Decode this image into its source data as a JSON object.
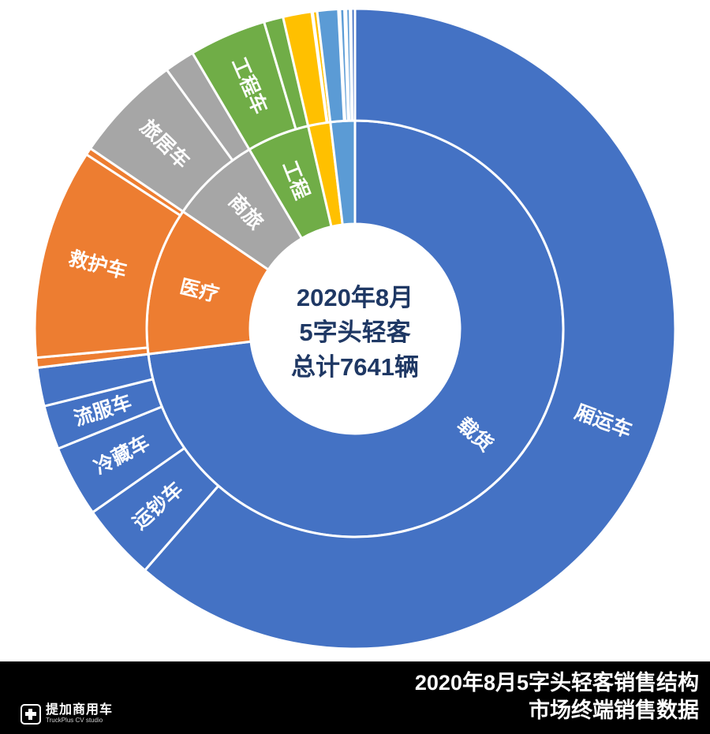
{
  "center_text": {
    "line1": "2020年8月",
    "line2": "5字头轻客",
    "line3": "总计7641辆",
    "color": "#1F3864"
  },
  "footer": {
    "title_line1": "2020年8月5字头轻客销售结构",
    "title_line2": "市场终端销售数据",
    "background": "#000000",
    "text_color": "#FFFFFF",
    "logo_name": "提加商用车",
    "logo_sub": "TruckPlus CV studio"
  },
  "palette": {
    "blue": "#4472C4",
    "light_blue": "#5B9BD5",
    "orange": "#ED7D31",
    "gray": "#A6A6A6",
    "green": "#70AD47",
    "yellow": "#FFC000",
    "slice_border": "#FFFFFF",
    "label_text": "#FFFFFF"
  },
  "chart_data": {
    "type": "pie",
    "subtype": "sunburst-two-rings",
    "title": "2020年8月 5字头轻客 总计7641辆",
    "total_vehicles": 7641,
    "angle_convention": "degrees clockwise from 12 o'clock",
    "inner_ring": [
      {
        "label": "载货",
        "color": "blue",
        "start": 0,
        "end": 263,
        "percent_est": 73.1
      },
      {
        "label": "医疗",
        "color": "orange",
        "start": 263,
        "end": 304.3,
        "percent_est": 11.5
      },
      {
        "label": "商旅",
        "color": "gray",
        "start": 304.3,
        "end": 329.5,
        "percent_est": 7.0
      },
      {
        "label": "工程",
        "color": "green",
        "start": 329.5,
        "end": 347,
        "percent_est": 4.9
      },
      {
        "label": "",
        "color": "yellow",
        "start": 347,
        "end": 353.2,
        "percent_est": 1.7
      },
      {
        "label": "",
        "color": "light_blue",
        "start": 353.2,
        "end": 360,
        "percent_est": 1.9
      }
    ],
    "outer_ring": [
      {
        "label": "厢运车",
        "color": "blue",
        "start": 0,
        "end": 221,
        "percent_est": 61.4
      },
      {
        "label": "运钞车",
        "color": "blue",
        "start": 221,
        "end": 235,
        "percent_est": 3.9
      },
      {
        "label": "冷藏车",
        "color": "blue",
        "start": 235,
        "end": 248,
        "percent_est": 3.6
      },
      {
        "label": "流服车",
        "color": "blue",
        "start": 248,
        "end": 256,
        "percent_est": 2.2
      },
      {
        "label": "",
        "color": "blue",
        "start": 256,
        "end": 263,
        "percent_est": 1.9
      },
      {
        "label": "",
        "color": "orange",
        "start": 263,
        "end": 264.8,
        "percent_est": 0.5
      },
      {
        "label": "救护车",
        "color": "orange",
        "start": 264.8,
        "end": 303,
        "percent_est": 10.6
      },
      {
        "label": "",
        "color": "orange",
        "start": 303,
        "end": 304.3,
        "percent_est": 0.4
      },
      {
        "label": "旅居车",
        "color": "gray",
        "start": 304.3,
        "end": 324,
        "percent_est": 5.5
      },
      {
        "label": "",
        "color": "gray",
        "start": 324,
        "end": 329.5,
        "percent_est": 1.5
      },
      {
        "label": "工程车",
        "color": "green",
        "start": 329.5,
        "end": 343.5,
        "percent_est": 3.9
      },
      {
        "label": "",
        "color": "green",
        "start": 343.5,
        "end": 347,
        "percent_est": 1.0
      },
      {
        "label": "",
        "color": "yellow",
        "start": 347,
        "end": 352.2,
        "percent_est": 1.4
      },
      {
        "label": "",
        "color": "yellow",
        "start": 352.4,
        "end": 353.2,
        "percent_est": 0.2
      },
      {
        "label": "",
        "color": "light_blue",
        "start": 353.2,
        "end": 357,
        "percent_est": 1.1
      },
      {
        "label": "",
        "color": "light_blue",
        "start": 357.3,
        "end": 358.1,
        "percent_est": 0.2
      },
      {
        "label": "",
        "color": "light_blue",
        "start": 358.4,
        "end": 359.1,
        "percent_est": 0.2
      },
      {
        "label": "",
        "color": "blue",
        "start": 359.3,
        "end": 360,
        "percent_est": 0.2
      }
    ],
    "legend": "none",
    "labels_style": "white bold text placed radially inside slices"
  }
}
